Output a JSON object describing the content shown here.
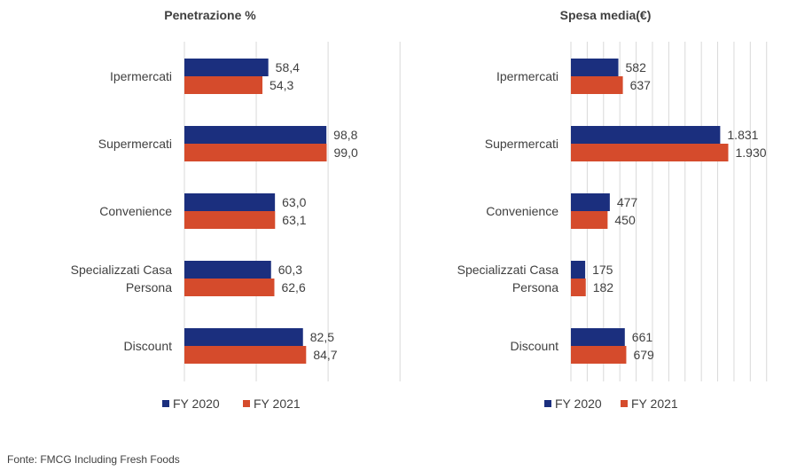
{
  "colors": {
    "fy2020": "#1B2F7E",
    "fy2021": "#D54B2C",
    "grid": "#D9D9D9",
    "text": "#404040"
  },
  "source": "Fonte: FMCG Including Fresh Foods",
  "chart_data": [
    {
      "type": "bar",
      "orientation": "horizontal",
      "title": "Penetrazione %",
      "categories": [
        "Ipermercati",
        "Supermercati",
        "Convenience",
        "Specializzati Casa Persona",
        "Discount"
      ],
      "category_lines": [
        [
          "Ipermercati"
        ],
        [
          "Supermercati"
        ],
        [
          "Convenience"
        ],
        [
          "Specializzati Casa",
          "Persona"
        ],
        [
          "Discount"
        ]
      ],
      "series": [
        {
          "name": "FY 2020",
          "values": [
            58.4,
            98.8,
            63.0,
            60.3,
            82.5
          ],
          "labels": [
            "58,4",
            "98,8",
            "63,0",
            "60,3",
            "82,5"
          ]
        },
        {
          "name": "FY 2021",
          "values": [
            54.3,
            99.0,
            63.1,
            62.6,
            84.7
          ],
          "labels": [
            "54,3",
            "99,0",
            "63,1",
            "62,6",
            "84,7"
          ]
        }
      ],
      "xlim": [
        0,
        150
      ],
      "grid": true,
      "legend": "bottom"
    },
    {
      "type": "bar",
      "orientation": "horizontal",
      "title": "Spesa media(€)",
      "categories": [
        "Ipermercati",
        "Supermercati",
        "Convenience",
        "Specializzati Casa Persona",
        "Discount"
      ],
      "category_lines": [
        [
          "Ipermercati"
        ],
        [
          "Supermercati"
        ],
        [
          "Convenience"
        ],
        [
          "Specializzati Casa",
          "Persona"
        ],
        [
          "Discount"
        ]
      ],
      "series": [
        {
          "name": "FY 2020",
          "values": [
            582,
            1831,
            477,
            175,
            661
          ],
          "labels": [
            "582",
            "1.831",
            "477",
            "175",
            "661"
          ]
        },
        {
          "name": "FY 2021",
          "values": [
            637,
            1930,
            450,
            182,
            679
          ],
          "labels": [
            "637",
            "1.930",
            "450",
            "182",
            "679"
          ]
        }
      ],
      "xlim": [
        0,
        2600
      ],
      "grid": true,
      "legend": "bottom"
    }
  ]
}
